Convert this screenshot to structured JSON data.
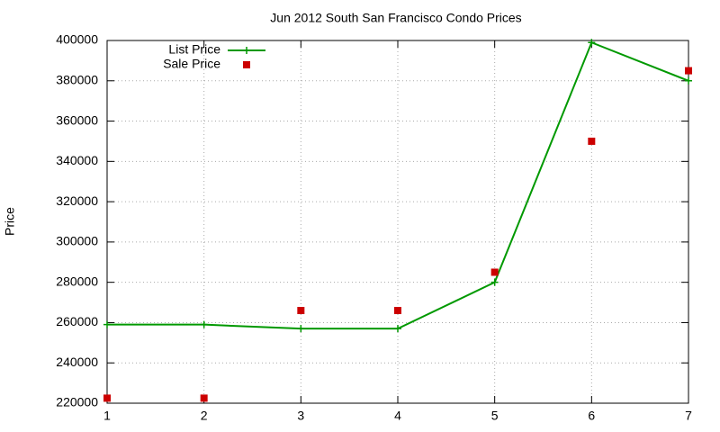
{
  "chart_data": {
    "type": "line",
    "title": "Jun 2012 South San Francisco Condo Prices",
    "ylabel": "Price",
    "x": [
      1,
      2,
      3,
      4,
      5,
      6,
      7
    ],
    "series": [
      {
        "name": "List Price",
        "color": "#009900",
        "line": true,
        "marker": "plus",
        "values": [
          259000,
          259000,
          257000,
          257000,
          280000,
          399000,
          380000
        ]
      },
      {
        "name": "Sale Price",
        "color": "#cc0000",
        "line": false,
        "marker": "square",
        "values": [
          222500,
          222500,
          266000,
          266000,
          285000,
          350000,
          385000
        ]
      }
    ],
    "xlim": [
      1,
      7
    ],
    "xticks": [
      1,
      2,
      3,
      4,
      5,
      6,
      7
    ],
    "ylim": [
      220000,
      400000
    ],
    "yticks": [
      220000,
      240000,
      260000,
      280000,
      300000,
      320000,
      340000,
      360000,
      380000,
      400000
    ],
    "grid": true,
    "legend": "top-left"
  }
}
